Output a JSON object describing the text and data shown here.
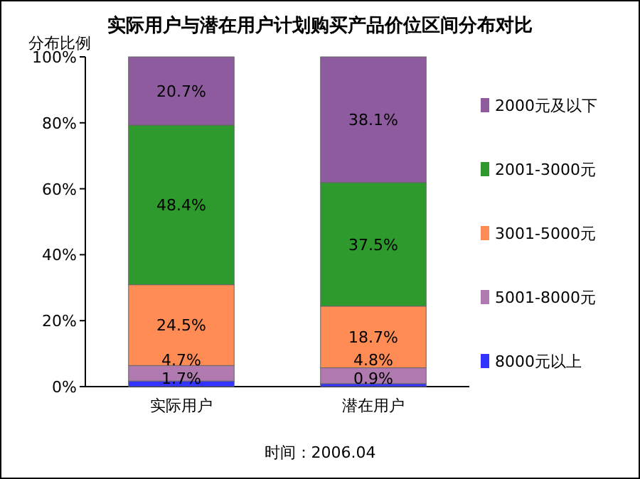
{
  "chart_data": {
    "type": "bar",
    "stacked": true,
    "title": "实际用户与潜在用户计划购买产品价位区间分布对比",
    "ylabel": "分布比例",
    "categories": [
      "实际用户",
      "潜在用户"
    ],
    "series": [
      {
        "name": "8000元以上",
        "color": "#3333ff",
        "values": [
          1.7,
          0.9
        ],
        "value_labels": [
          "1.7%",
          "0.9%"
        ]
      },
      {
        "name": "5001-8000元",
        "color": "#b07ab0",
        "values": [
          4.7,
          4.8
        ],
        "value_labels": [
          "4.7%",
          "4.8%"
        ]
      },
      {
        "name": "3001-5000元",
        "color": "#ff8c55",
        "values": [
          24.5,
          18.7
        ],
        "value_labels": [
          "24.5%",
          "18.7%"
        ]
      },
      {
        "name": "2001-3000元",
        "color": "#2e9a2e",
        "values": [
          48.4,
          37.5
        ],
        "value_labels": [
          "48.4%",
          "37.5%"
        ]
      },
      {
        "name": "2000元及以下",
        "color": "#8e5c9e",
        "values": [
          20.7,
          38.1
        ],
        "value_labels": [
          "20.7%",
          "38.1%"
        ]
      }
    ],
    "ylim": [
      0,
      100
    ],
    "yticks": [
      {
        "value": 0,
        "label": "0%"
      },
      {
        "value": 20,
        "label": "20%"
      },
      {
        "value": 40,
        "label": "40%"
      },
      {
        "value": 60,
        "label": "60%"
      },
      {
        "value": 80,
        "label": "80%"
      },
      {
        "value": 100,
        "label": "100%"
      }
    ],
    "legend": "right",
    "annotations": [
      "时间：2006.04"
    ]
  }
}
